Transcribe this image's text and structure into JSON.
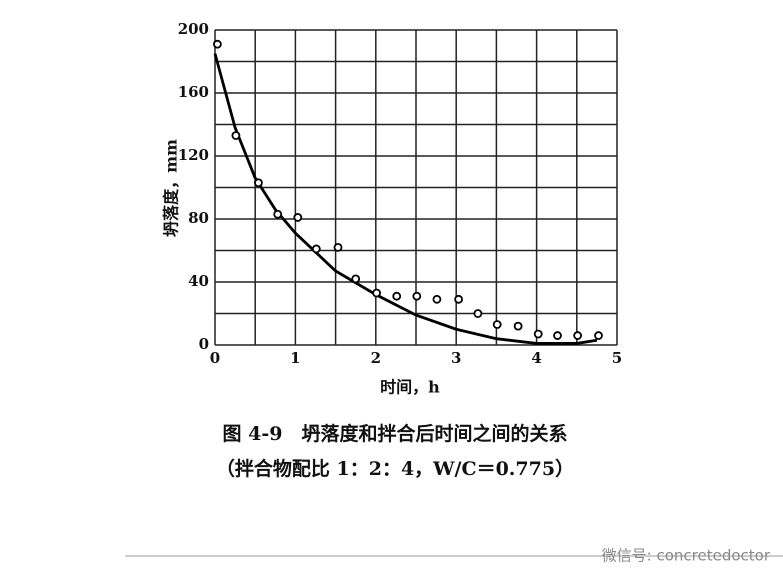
{
  "chart_data": {
    "type": "scatter",
    "xlabel": "时间，h",
    "ylabel": "坍落度，mm",
    "caption": "图 4-9　坍落度和拌合后时间之间的关系",
    "subcaption": "（拌合物配比 1：2：4，W/C＝0.775）",
    "watermark": "微信号: concretedoctor",
    "xlim": [
      0,
      5
    ],
    "ylim": [
      0,
      200
    ],
    "xticks": [
      0,
      1,
      2,
      3,
      4,
      5
    ],
    "yticks": [
      0,
      40,
      80,
      120,
      160,
      200
    ],
    "xgrid": [
      0,
      0.5,
      1,
      1.5,
      2,
      2.5,
      3,
      3.5,
      4,
      4.5,
      5
    ],
    "ygrid": [
      0,
      20,
      40,
      60,
      80,
      100,
      120,
      140,
      160,
      180,
      200
    ],
    "color": "#000000",
    "x": [
      0.03,
      0.26,
      0.54,
      0.78,
      1.03,
      1.26,
      1.53,
      1.75,
      2.01,
      2.26,
      2.51,
      2.76,
      3.03,
      3.27,
      3.51,
      3.77,
      4.02,
      4.26,
      4.51,
      4.77
    ],
    "values": [
      191,
      133,
      103,
      83,
      81,
      61,
      62,
      42,
      33,
      31,
      31,
      29,
      29,
      20,
      13,
      12,
      7,
      6,
      6,
      6
    ],
    "curve": {
      "x": [
        0,
        0.25,
        0.5,
        0.75,
        1,
        1.5,
        2,
        2.5,
        3,
        3.5,
        4,
        4.5,
        4.75
      ],
      "values": [
        185,
        138,
        106,
        86,
        71,
        47,
        32,
        19,
        10,
        4,
        1,
        1,
        3
      ]
    }
  }
}
